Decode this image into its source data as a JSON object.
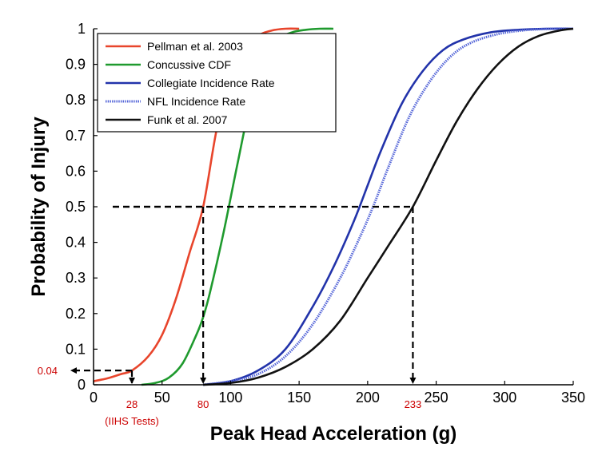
{
  "chart_data": {
    "type": "line",
    "xlabel": "Peak Head Acceleration (g)",
    "ylabel": "Probability of Injury",
    "xlim": [
      0,
      350
    ],
    "ylim": [
      0,
      1
    ],
    "xticks": [
      "0",
      "50",
      "100",
      "150",
      "200",
      "250",
      "300",
      "350"
    ],
    "yticks": [
      "0",
      "0.1",
      "0.2",
      "0.3",
      "0.4",
      "0.5",
      "0.6",
      "0.7",
      "0.8",
      "0.9",
      "1"
    ],
    "grid": false,
    "legend_position": "top-left",
    "series": [
      {
        "name": "Pellman et al. 2003",
        "color": "#e8452c",
        "style": "solid",
        "x": [
          0,
          10,
          20,
          28,
          40,
          50,
          60,
          70,
          80,
          90,
          100,
          110,
          120,
          130,
          140,
          150
        ],
        "y": [
          0.01,
          0.018,
          0.03,
          0.04,
          0.08,
          0.14,
          0.24,
          0.37,
          0.5,
          0.72,
          0.86,
          0.94,
          0.98,
          0.995,
          1.0,
          1.0
        ]
      },
      {
        "name": "Concussive CDF",
        "color": "#1f9a2e",
        "style": "solid",
        "x": [
          35,
          45,
          55,
          65,
          75,
          80,
          85,
          95,
          105,
          115,
          125,
          135,
          145,
          155,
          165,
          175
        ],
        "y": [
          0.0,
          0.005,
          0.02,
          0.06,
          0.14,
          0.19,
          0.26,
          0.43,
          0.62,
          0.8,
          0.91,
          0.97,
          0.99,
          0.997,
          1.0,
          1.0
        ]
      },
      {
        "name": "Collegiate Incidence Rate",
        "color": "#2233aa",
        "style": "solid",
        "x": [
          80,
          100,
          120,
          140,
          160,
          175,
          190,
          200,
          210,
          225,
          240,
          255,
          270,
          290,
          310,
          330,
          350
        ],
        "y": [
          0.0,
          0.01,
          0.04,
          0.1,
          0.22,
          0.33,
          0.46,
          0.56,
          0.66,
          0.79,
          0.88,
          0.94,
          0.97,
          0.99,
          0.997,
          1.0,
          1.0
        ]
      },
      {
        "name": "NFL Incidence Rate",
        "color": "#5566d8",
        "style": "dotted",
        "x": [
          80,
          100,
          120,
          140,
          160,
          180,
          195,
          205,
          215,
          230,
          245,
          260,
          275,
          295,
          315,
          335,
          350
        ],
        "y": [
          0.0,
          0.01,
          0.03,
          0.08,
          0.17,
          0.3,
          0.42,
          0.51,
          0.61,
          0.75,
          0.85,
          0.92,
          0.96,
          0.985,
          0.996,
          1.0,
          1.0
        ]
      },
      {
        "name": "Funk et al. 2007",
        "color": "#111111",
        "style": "solid",
        "x": [
          80,
          100,
          120,
          140,
          160,
          180,
          200,
          215,
          233,
          250,
          265,
          280,
          295,
          310,
          325,
          340,
          350
        ],
        "y": [
          0.0,
          0.005,
          0.02,
          0.05,
          0.1,
          0.18,
          0.3,
          0.39,
          0.5,
          0.63,
          0.74,
          0.83,
          0.9,
          0.95,
          0.98,
          0.995,
          1.0
        ]
      }
    ],
    "annotations": [
      {
        "kind": "dashed-guide",
        "x": 28,
        "y": 0.04,
        "x_label": "28",
        "x_sublabel": "(IIHS Tests)",
        "y_label": "0.04",
        "color": "#cc0000"
      },
      {
        "kind": "dashed-guide",
        "x": 80,
        "y": 0.5,
        "x_label": "80",
        "color": "#cc0000"
      },
      {
        "kind": "dashed-guide",
        "x": 233,
        "y": 0.5,
        "x_label": "233",
        "color": "#cc0000"
      }
    ]
  }
}
